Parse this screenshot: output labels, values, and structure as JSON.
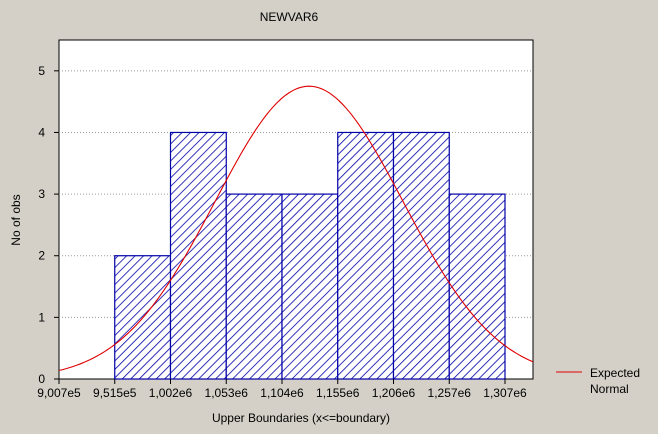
{
  "chart_data": {
    "type": "bar",
    "title": "NEWVAR6",
    "xlabel": "Upper Boundaries (x<=boundary)",
    "ylabel": "No of obs",
    "x_tick_labels": [
      "9,007e5",
      "9,515e5",
      "1,002e6",
      "1,053e6",
      "1,104e6",
      "1,155e6",
      "1,206e6",
      "1,257e6",
      "1,307e6"
    ],
    "bins": [
      {
        "upper": "9,515e5",
        "value": 0
      },
      {
        "upper": "1,002e6",
        "value": 2
      },
      {
        "upper": "1,053e6",
        "value": 4
      },
      {
        "upper": "1,104e6",
        "value": 3
      },
      {
        "upper": "1,155e6",
        "value": 3
      },
      {
        "upper": "1,206e6",
        "value": 4
      },
      {
        "upper": "1,257e6",
        "value": 4
      },
      {
        "upper": "1,307e6",
        "value": 3
      }
    ],
    "ylim": [
      0,
      5.5
    ],
    "y_ticks": [
      0,
      1,
      2,
      3,
      4,
      5
    ],
    "grid": true,
    "bar_color": "#0000a8",
    "curve_color": "#e00000",
    "expected_normal": {
      "x_data_range": [
        0.88,
        1.34
      ],
      "x_tick_range": [
        0.9007,
        1.307
      ],
      "mean": 1.1285,
      "sd": 0.0856,
      "peak": 4.75
    },
    "legend": {
      "line1": "Expected",
      "line2": "Normal",
      "position": "right"
    }
  }
}
